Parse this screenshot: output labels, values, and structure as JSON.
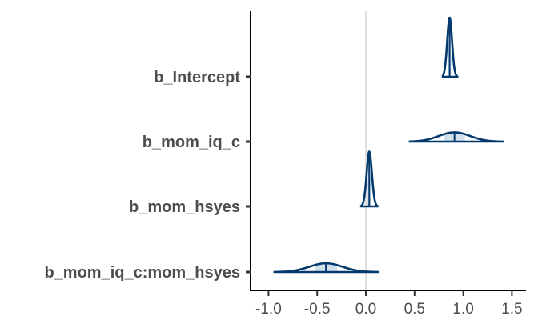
{
  "chart_data": {
    "type": "area",
    "title": "",
    "xlabel": "",
    "ylabel": "",
    "xlim": [
      -1.2,
      1.65
    ],
    "x_ticks": [
      -1.0,
      -0.5,
      0.0,
      0.5,
      1.0,
      1.5
    ],
    "x_tick_labels": [
      "-1.0",
      "-0.5",
      "0.0",
      "0.5",
      "1.0",
      "1.5"
    ],
    "reference_line": 0.0,
    "grid": false,
    "series": [
      {
        "name": "b_Intercept",
        "median": 0.86,
        "sd": 0.025,
        "lower": 0.79,
        "upper": 0.94
      },
      {
        "name": "b_mom_iq_c",
        "median": 0.91,
        "sd": 0.16,
        "lower": 0.45,
        "upper": 1.41
      },
      {
        "name": "b_mom_hsyes",
        "median": 0.035,
        "sd": 0.027,
        "lower": -0.05,
        "upper": 0.12
      },
      {
        "name": "b_mom_iq_c:mom_hsyes",
        "median": -0.41,
        "sd": 0.17,
        "lower": -0.94,
        "upper": 0.13
      }
    ],
    "colors": {
      "outline": "#03396c",
      "fill": "#d1e1ec",
      "refline": "#e0e0e0",
      "axis": "#000000",
      "text": "#4d4d4d"
    }
  }
}
